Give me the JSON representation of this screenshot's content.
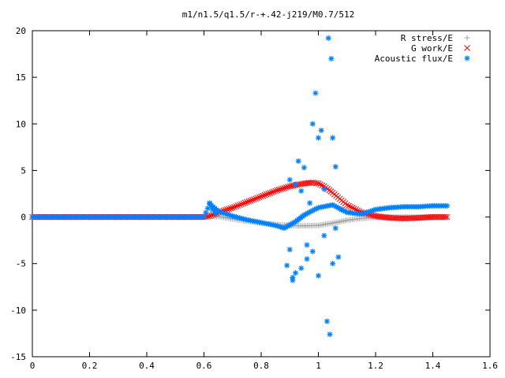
{
  "chart_data": {
    "type": "scatter",
    "title": "m1/n1.5/q1.5/r-+.42-j219/M0.7/512",
    "xlabel": "",
    "ylabel": "",
    "xlim": [
      0,
      1.6
    ],
    "ylim": [
      -15,
      20
    ],
    "xticks": [
      0,
      0.2,
      0.4,
      0.6,
      0.8,
      1,
      1.2,
      1.4,
      1.6
    ],
    "xtick_labels": [
      "0",
      "0.2",
      "0.4",
      "0.6",
      "0.8",
      "1",
      "1.2",
      "1.4",
      "1.6"
    ],
    "yticks": [
      -15,
      -10,
      -5,
      0,
      5,
      10,
      15,
      20
    ],
    "ytick_labels": [
      "-15",
      "-10",
      "-5",
      "0",
      "5",
      "10",
      "15",
      "20"
    ],
    "grid": false,
    "legend_position": "top-right",
    "series": [
      {
        "name": "R stress/E",
        "marker": "plus",
        "color": "#a0a0a0",
        "x": [
          0.0,
          0.1,
          0.2,
          0.3,
          0.4,
          0.5,
          0.6,
          0.62,
          0.65,
          0.7,
          0.75,
          0.8,
          0.85,
          0.9,
          0.95,
          1.0,
          1.05,
          1.1,
          1.15,
          1.2,
          1.25,
          1.3,
          1.35,
          1.4,
          1.45
        ],
        "values": [
          0,
          0,
          0,
          0,
          0,
          0,
          0,
          0.1,
          0.05,
          -0.2,
          -0.45,
          -0.65,
          -0.8,
          -0.9,
          -0.95,
          -0.9,
          -0.65,
          -0.35,
          -0.15,
          -0.05,
          0,
          0,
          0,
          0,
          0
        ]
      },
      {
        "name": "G work/E",
        "marker": "cross",
        "color": "#ff0000",
        "x": [
          0.0,
          0.1,
          0.2,
          0.3,
          0.4,
          0.5,
          0.6,
          0.62,
          0.65,
          0.7,
          0.75,
          0.8,
          0.85,
          0.9,
          0.95,
          0.98,
          1.0,
          1.02,
          1.05,
          1.1,
          1.15,
          1.2,
          1.25,
          1.3,
          1.35,
          1.4,
          1.45
        ],
        "values": [
          0,
          0,
          0,
          0,
          0,
          0,
          0,
          0.1,
          0.5,
          1.0,
          1.6,
          2.2,
          2.8,
          3.3,
          3.6,
          3.7,
          3.6,
          3.3,
          2.6,
          1.3,
          0.5,
          0.1,
          -0.1,
          -0.15,
          -0.1,
          0,
          0
        ]
      },
      {
        "name": "Acoustic flux/E",
        "marker": "star",
        "color": "#0080ff",
        "x": [
          0.0,
          0.1,
          0.2,
          0.3,
          0.4,
          0.5,
          0.6,
          0.62,
          0.65,
          0.7,
          0.75,
          0.8,
          0.85,
          0.88,
          0.92,
          0.95,
          0.98,
          1.0,
          1.05,
          1.1,
          1.15,
          1.2,
          1.25,
          1.3,
          1.35,
          1.4,
          1.45
        ],
        "values": [
          0,
          0,
          0,
          0,
          0,
          0,
          0,
          1.4,
          0.6,
          0.1,
          -0.3,
          -0.6,
          -0.9,
          -1.2,
          -0.5,
          0.2,
          0.7,
          1.0,
          1.3,
          0.5,
          0.3,
          0.8,
          1.0,
          1.1,
          1.1,
          1.2,
          1.2
        ],
        "scatter_x": [
          0.62,
          0.63,
          0.64,
          0.9,
          0.91,
          0.92,
          0.93,
          0.94,
          0.95,
          0.96,
          0.97,
          0.98,
          0.99,
          1.0,
          1.01,
          1.02,
          1.03,
          1.035,
          1.04,
          1.045,
          1.05,
          1.06,
          1.07,
          0.89,
          0.9,
          0.91,
          0.92,
          0.94,
          0.96,
          0.98,
          1.0,
          1.02,
          1.05,
          1.06,
          1.08
        ],
        "scatter_y": [
          1.5,
          0.8,
          0.4,
          4.0,
          -6.8,
          3.5,
          6.0,
          -5.5,
          5.3,
          -3.0,
          1.5,
          10.0,
          13.3,
          8.5,
          9.3,
          -2.0,
          -11.2,
          19.2,
          -12.6,
          17.0,
          8.5,
          5.4,
          -4.3,
          -5.2,
          -3.5,
          -6.5,
          -6.0,
          2.8,
          -4.5,
          -3.7,
          -6.3,
          3.0,
          -5.0,
          -1.2,
          0.8
        ]
      }
    ]
  }
}
